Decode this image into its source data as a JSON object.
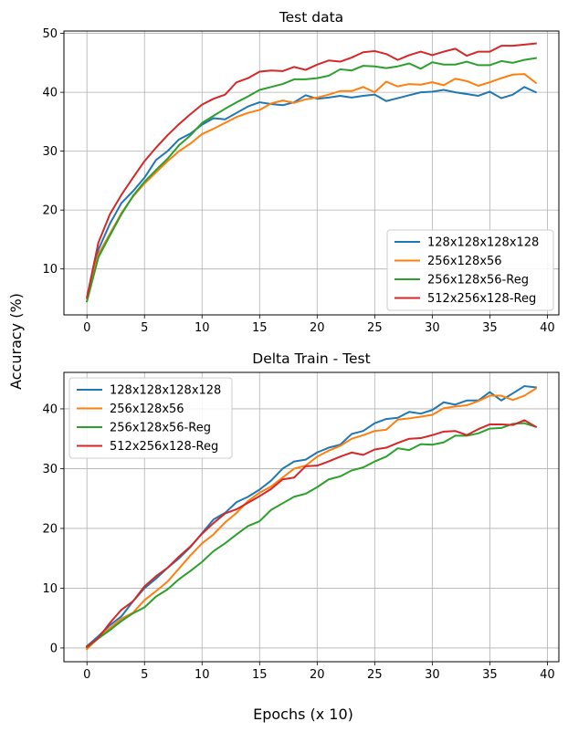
{
  "figure": {
    "supylabel": "Accuracy (%)",
    "supxlabel": "Epochs (x 10)"
  },
  "chart_data": [
    {
      "type": "line",
      "title": "Test data",
      "xlabel": "",
      "ylabel": "",
      "xlim": [
        -2,
        41
      ],
      "ylim": [
        2.2,
        50.4
      ],
      "xticks": [
        0,
        5,
        10,
        15,
        20,
        25,
        30,
        35,
        40
      ],
      "yticks": [
        10,
        20,
        30,
        40,
        50
      ],
      "grid": true,
      "legend_position": "lower-right",
      "x": [
        0,
        1,
        2,
        3,
        4,
        5,
        6,
        7,
        8,
        9,
        10,
        11,
        12,
        13,
        14,
        15,
        16,
        17,
        18,
        19,
        20,
        21,
        22,
        23,
        24,
        25,
        26,
        27,
        28,
        29,
        30,
        31,
        32,
        33,
        34,
        35,
        36,
        37,
        38,
        39
      ],
      "series": [
        {
          "name": "128x128x128x128",
          "color": "#1f77b4",
          "values": [
            5.0,
            13.3,
            17.7,
            21.2,
            23.2,
            25.5,
            28.5,
            30.0,
            32.0,
            33.0,
            34.5,
            35.6,
            35.4,
            36.5,
            37.6,
            38.3,
            38.0,
            37.8,
            38.3,
            39.5,
            38.9,
            39.1,
            39.4,
            39.1,
            39.4,
            39.6,
            38.5,
            39.0,
            39.5,
            40.0,
            40.1,
            40.4,
            40.0,
            39.7,
            39.4,
            40.1,
            39.0,
            39.6,
            40.9,
            40.0
          ]
        },
        {
          "name": "256x128x56",
          "color": "#ff7f0e",
          "values": [
            5.0,
            12.5,
            16.0,
            19.5,
            22.3,
            24.5,
            26.4,
            28.3,
            30.0,
            31.3,
            32.9,
            33.8,
            34.8,
            35.8,
            36.5,
            37.0,
            38.1,
            38.6,
            38.2,
            38.8,
            39.1,
            39.6,
            40.2,
            40.2,
            40.9,
            40.0,
            41.8,
            41.0,
            41.4,
            41.3,
            41.7,
            41.2,
            42.3,
            41.9,
            41.1,
            41.7,
            42.4,
            43.0,
            43.1,
            41.6
          ]
        },
        {
          "name": "256x128x56-Reg",
          "color": "#2ca02c",
          "values": [
            4.5,
            12.0,
            15.7,
            19.3,
            22.4,
            24.8,
            26.8,
            28.7,
            31.0,
            32.7,
            34.8,
            36.0,
            37.2,
            38.3,
            39.3,
            40.4,
            40.9,
            41.4,
            42.2,
            42.2,
            42.4,
            42.8,
            43.9,
            43.7,
            44.5,
            44.4,
            44.1,
            44.4,
            44.9,
            44.0,
            45.1,
            44.7,
            44.7,
            45.2,
            44.6,
            44.6,
            45.3,
            45.0,
            45.5,
            45.8
          ]
        },
        {
          "name": "512x256x128-Reg",
          "color": "#d62728",
          "values": [
            5.2,
            14.5,
            19.3,
            22.6,
            25.5,
            28.3,
            30.6,
            32.7,
            34.6,
            36.3,
            37.9,
            38.9,
            39.6,
            41.7,
            42.4,
            43.5,
            43.7,
            43.6,
            44.3,
            43.8,
            44.7,
            45.4,
            45.2,
            45.9,
            46.8,
            47.0,
            46.5,
            45.5,
            46.3,
            46.9,
            46.3,
            46.9,
            47.4,
            46.2,
            46.9,
            46.9,
            47.9,
            47.9,
            48.1,
            48.3
          ]
        }
      ]
    },
    {
      "type": "line",
      "title": "Delta Train - Test",
      "xlabel": "",
      "ylabel": "",
      "xlim": [
        -2,
        41
      ],
      "ylim": [
        -2.3,
        46.1
      ],
      "xticks": [
        0,
        5,
        10,
        15,
        20,
        25,
        30,
        35,
        40
      ],
      "yticks": [
        0,
        10,
        20,
        30,
        40
      ],
      "grid": true,
      "legend_position": "upper-left",
      "x": [
        0,
        1,
        2,
        3,
        4,
        5,
        6,
        7,
        8,
        9,
        10,
        11,
        12,
        13,
        14,
        15,
        16,
        17,
        18,
        19,
        20,
        21,
        22,
        23,
        24,
        25,
        26,
        27,
        28,
        29,
        30,
        31,
        32,
        33,
        34,
        35,
        36,
        37,
        38,
        39
      ],
      "series": [
        {
          "name": "128x128x128x128",
          "color": "#1f77b4",
          "values": [
            0.3,
            2.0,
            3.8,
            5.3,
            7.8,
            10.0,
            11.6,
            13.4,
            15.0,
            16.9,
            19.2,
            21.5,
            22.6,
            24.4,
            25.3,
            26.5,
            28.0,
            30.0,
            31.2,
            31.5,
            32.7,
            33.5,
            34.0,
            35.8,
            36.3,
            37.6,
            38.3,
            38.5,
            39.5,
            39.2,
            39.8,
            41.1,
            40.7,
            41.4,
            41.4,
            42.8,
            41.4,
            42.6,
            43.8,
            43.6
          ]
        },
        {
          "name": "256x128x56",
          "color": "#ff7f0e",
          "values": [
            -0.2,
            1.7,
            3.3,
            4.9,
            5.9,
            8.0,
            9.5,
            11.1,
            13.3,
            15.5,
            17.5,
            19.0,
            21.0,
            22.6,
            24.6,
            26.0,
            27.0,
            28.5,
            30.0,
            30.5,
            32.0,
            33.0,
            33.8,
            35.0,
            35.6,
            36.3,
            36.5,
            38.2,
            38.4,
            38.7,
            39.0,
            40.1,
            40.4,
            40.6,
            41.3,
            42.2,
            42.2,
            41.5,
            42.2,
            43.4
          ]
        },
        {
          "name": "256x128x56-Reg",
          "color": "#2ca02c",
          "values": [
            0.1,
            1.6,
            3.0,
            4.5,
            5.8,
            6.8,
            8.6,
            9.8,
            11.5,
            12.9,
            14.4,
            16.2,
            17.5,
            19.0,
            20.4,
            21.2,
            23.1,
            24.2,
            25.3,
            25.8,
            26.9,
            28.2,
            28.7,
            29.7,
            30.2,
            31.2,
            32.0,
            33.4,
            33.1,
            34.1,
            34.0,
            34.4,
            35.5,
            35.5,
            35.9,
            36.7,
            36.8,
            37.5,
            37.6,
            37.0
          ]
        },
        {
          "name": "512x256x128-Reg",
          "color": "#d62728",
          "values": [
            0.2,
            1.7,
            4.2,
            6.4,
            7.8,
            10.3,
            12.0,
            13.4,
            15.3,
            17.0,
            19.1,
            20.9,
            22.5,
            23.2,
            24.3,
            25.4,
            26.6,
            28.2,
            28.5,
            30.4,
            30.5,
            31.2,
            32.0,
            32.7,
            32.3,
            33.2,
            33.5,
            34.3,
            35.0,
            35.1,
            35.6,
            36.2,
            36.3,
            35.6,
            36.6,
            37.4,
            37.4,
            37.3,
            38.1,
            37.0
          ]
        }
      ]
    }
  ]
}
